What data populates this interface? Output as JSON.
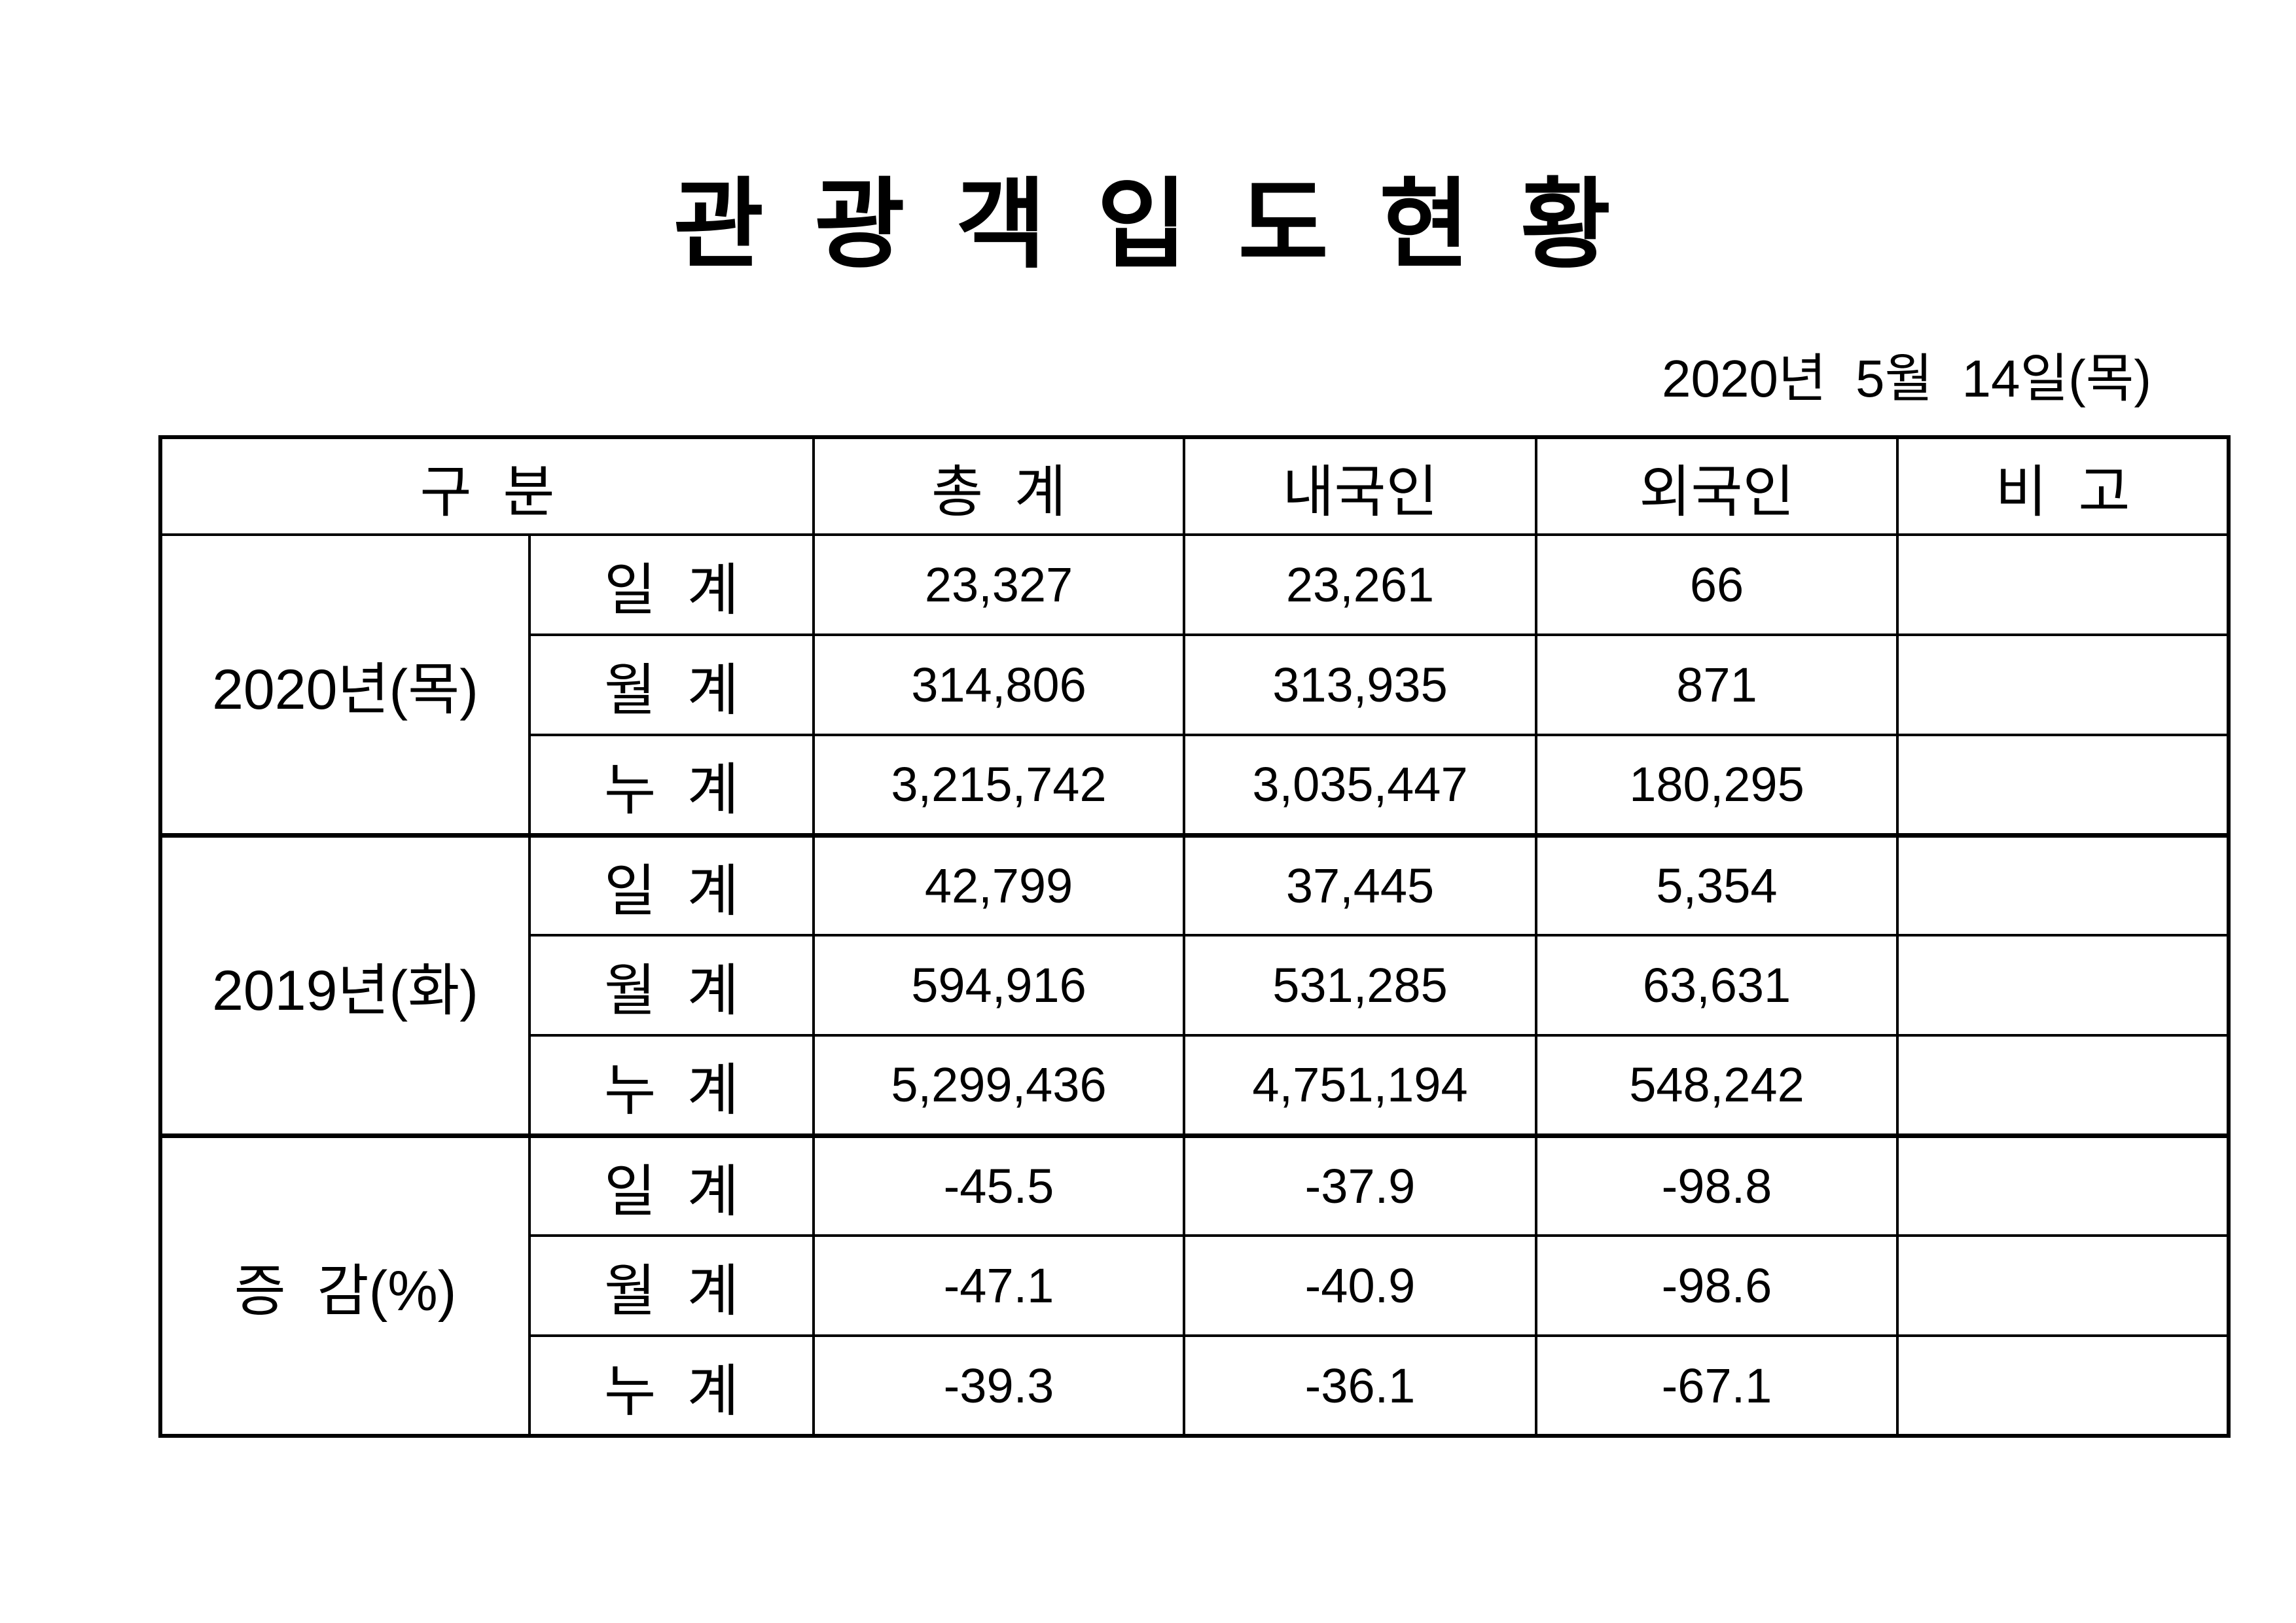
{
  "doc": {
    "title": "관 광 객 입 도 현 황",
    "date": "2020년  5월  14일(목)"
  },
  "table": {
    "headers": {
      "category": "구  분",
      "total": "총  계",
      "domestic": "내국인",
      "foreign": "외국인",
      "remarks": "비  고"
    },
    "groups": [
      {
        "label": "2020년(목)",
        "rows": [
          {
            "sub": "일  계",
            "total": "23,327",
            "domestic": "23,261",
            "foreign": "66",
            "remarks": ""
          },
          {
            "sub": "월  계",
            "total": "314,806",
            "domestic": "313,935",
            "foreign": "871",
            "remarks": ""
          },
          {
            "sub": "누  계",
            "total": "3,215,742",
            "domestic": "3,035,447",
            "foreign": "180,295",
            "remarks": ""
          }
        ]
      },
      {
        "label": "2019년(화)",
        "rows": [
          {
            "sub": "일  계",
            "total": "42,799",
            "domestic": "37,445",
            "foreign": "5,354",
            "remarks": ""
          },
          {
            "sub": "월  계",
            "total": "594,916",
            "domestic": "531,285",
            "foreign": "63,631",
            "remarks": ""
          },
          {
            "sub": "누  계",
            "total": "5,299,436",
            "domestic": "4,751,194",
            "foreign": "548,242",
            "remarks": ""
          }
        ]
      },
      {
        "label": "증  감(%)",
        "rows": [
          {
            "sub": "일  계",
            "total": "-45.5",
            "domestic": "-37.9",
            "foreign": "-98.8",
            "remarks": ""
          },
          {
            "sub": "월  계",
            "total": "-47.1",
            "domestic": "-40.9",
            "foreign": "-98.6",
            "remarks": ""
          },
          {
            "sub": "누  계",
            "total": "-39.3",
            "domestic": "-36.1",
            "foreign": "-67.1",
            "remarks": ""
          }
        ]
      }
    ]
  }
}
